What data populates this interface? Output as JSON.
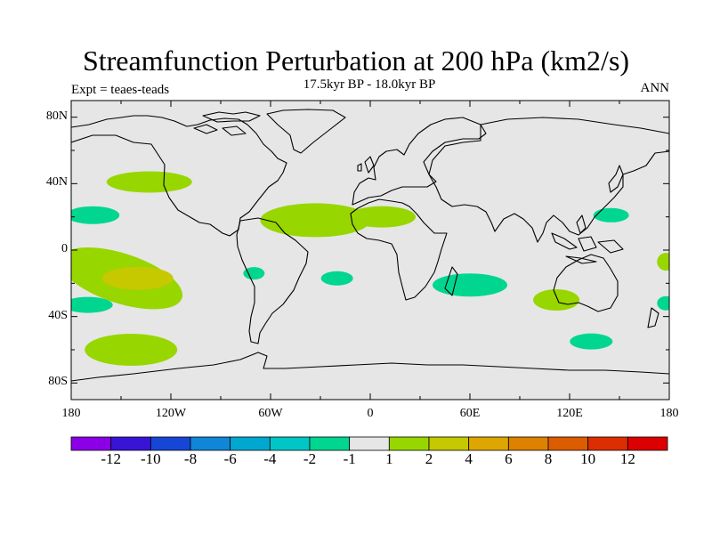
{
  "title": "Streamfunction Perturbation at 200 hPa (km2/s)",
  "subtitle": "17.5kyr BP - 18.0kyr BP",
  "left_label": "Expt = teaes-teads",
  "right_label": "ANN",
  "map": {
    "projection": "cylindrical-equidistant",
    "background_color": "#e6e6e6",
    "coastline_color": "#000000",
    "lat_labels": [
      "80N",
      "40N",
      "0",
      "40S",
      "80S"
    ],
    "lon_labels": [
      "180",
      "120W",
      "60W",
      "0",
      "60E",
      "120E",
      "180"
    ],
    "anomalies": [
      {
        "lon": -133,
        "lat": 41,
        "level": 2
      },
      {
        "lon": -167,
        "lat": 21,
        "level": -2
      },
      {
        "lon": -33,
        "lat": 18,
        "level": 2
      },
      {
        "lon": 7,
        "lat": 20,
        "level": 2
      },
      {
        "lon": 145,
        "lat": 21,
        "level": -2
      },
      {
        "lon": -150,
        "lat": -17,
        "level": 2
      },
      {
        "lon": -140,
        "lat": -17,
        "level": 4
      },
      {
        "lon": -170,
        "lat": -33,
        "level": -2
      },
      {
        "lon": -70,
        "lat": -14,
        "level": -2
      },
      {
        "lon": -20,
        "lat": -17,
        "level": -2
      },
      {
        "lon": 60,
        "lat": -21,
        "level": -2
      },
      {
        "lon": 112,
        "lat": -30,
        "level": 2
      },
      {
        "lon": 178,
        "lat": -7,
        "level": 2
      },
      {
        "lon": 178,
        "lat": -32,
        "level": -2
      },
      {
        "lon": -144,
        "lat": -60,
        "level": 2
      },
      {
        "lon": 133,
        "lat": -55,
        "level": -2
      }
    ]
  },
  "colorbar": {
    "labels": [
      "-12",
      "-10",
      "-8",
      "-6",
      "-4",
      "-2",
      "-1",
      "1",
      "2",
      "4",
      "6",
      "8",
      "10",
      "12"
    ],
    "colors": [
      "#8b00e6",
      "#3a14d6",
      "#1746d6",
      "#0f86d6",
      "#00a8d0",
      "#00c6c6",
      "#00d690",
      "#e6e6e6",
      "#98d600",
      "#c6c800",
      "#dea600",
      "#dc8200",
      "#dc5c00",
      "#dc2e00",
      "#dc0000"
    ]
  }
}
